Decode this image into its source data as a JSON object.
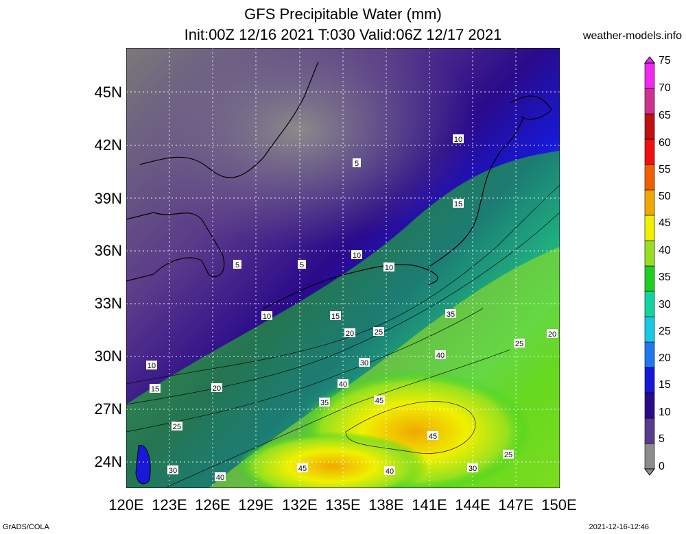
{
  "title_line1": "GFS Precipitable Water (mm)",
  "title_line2": "Init:00Z 12/16 2021 T:030 Valid:06Z 12/17 2021",
  "site": "weather-models.info",
  "footer_left": "GrADS/COLA",
  "footer_right": "2021-12-16-12:46",
  "lat_labels": [
    "45N",
    "42N",
    "39N",
    "36N",
    "33N",
    "30N",
    "27N",
    "24N"
  ],
  "lon_labels": [
    "120E",
    "123E",
    "126E",
    "129E",
    "132E",
    "135E",
    "138E",
    "141E",
    "144E",
    "147E",
    "150E"
  ],
  "colorbar": {
    "labels": [
      "0",
      "5",
      "10",
      "15",
      "20",
      "25",
      "30",
      "35",
      "40",
      "45",
      "50",
      "55",
      "60",
      "65",
      "70",
      "75"
    ],
    "colors": [
      "#8c8c8c",
      "#5a3a8a",
      "#2a0a8a",
      "#1818d8",
      "#1e78f0",
      "#18c8e8",
      "#12d4a0",
      "#20d020",
      "#96e020",
      "#f0f000",
      "#f0a800",
      "#f06000",
      "#f01010",
      "#c01010",
      "#d03090",
      "#f028f0"
    ]
  },
  "contour_labels": [
    {
      "value": "5",
      "id": "c1"
    },
    {
      "value": "10",
      "id": "c2"
    },
    {
      "value": "15",
      "id": "c3"
    },
    {
      "value": "5",
      "id": "c4"
    },
    {
      "value": "5",
      "id": "c5"
    },
    {
      "value": "10",
      "id": "c6"
    },
    {
      "value": "10",
      "id": "c7"
    },
    {
      "value": "10",
      "id": "c8"
    },
    {
      "value": "15",
      "id": "c9"
    },
    {
      "value": "20",
      "id": "c10"
    },
    {
      "value": "25",
      "id": "c11"
    },
    {
      "value": "35",
      "id": "c12"
    },
    {
      "value": "10",
      "id": "c13"
    },
    {
      "value": "15",
      "id": "c14"
    },
    {
      "value": "20",
      "id": "c15"
    },
    {
      "value": "30",
      "id": "c16"
    },
    {
      "value": "40",
      "id": "c17"
    },
    {
      "value": "35",
      "id": "c18"
    },
    {
      "value": "45",
      "id": "c19"
    },
    {
      "value": "40",
      "id": "c20"
    },
    {
      "value": "25",
      "id": "c21"
    },
    {
      "value": "20",
      "id": "c22"
    },
    {
      "value": "45",
      "id": "c23"
    },
    {
      "value": "25",
      "id": "c24"
    },
    {
      "value": "30",
      "id": "c25"
    },
    {
      "value": "40",
      "id": "c26"
    },
    {
      "value": "45",
      "id": "c27"
    },
    {
      "value": "40",
      "id": "c28"
    },
    {
      "value": "30",
      "id": "c29"
    },
    {
      "value": "25",
      "id": "c30"
    }
  ]
}
